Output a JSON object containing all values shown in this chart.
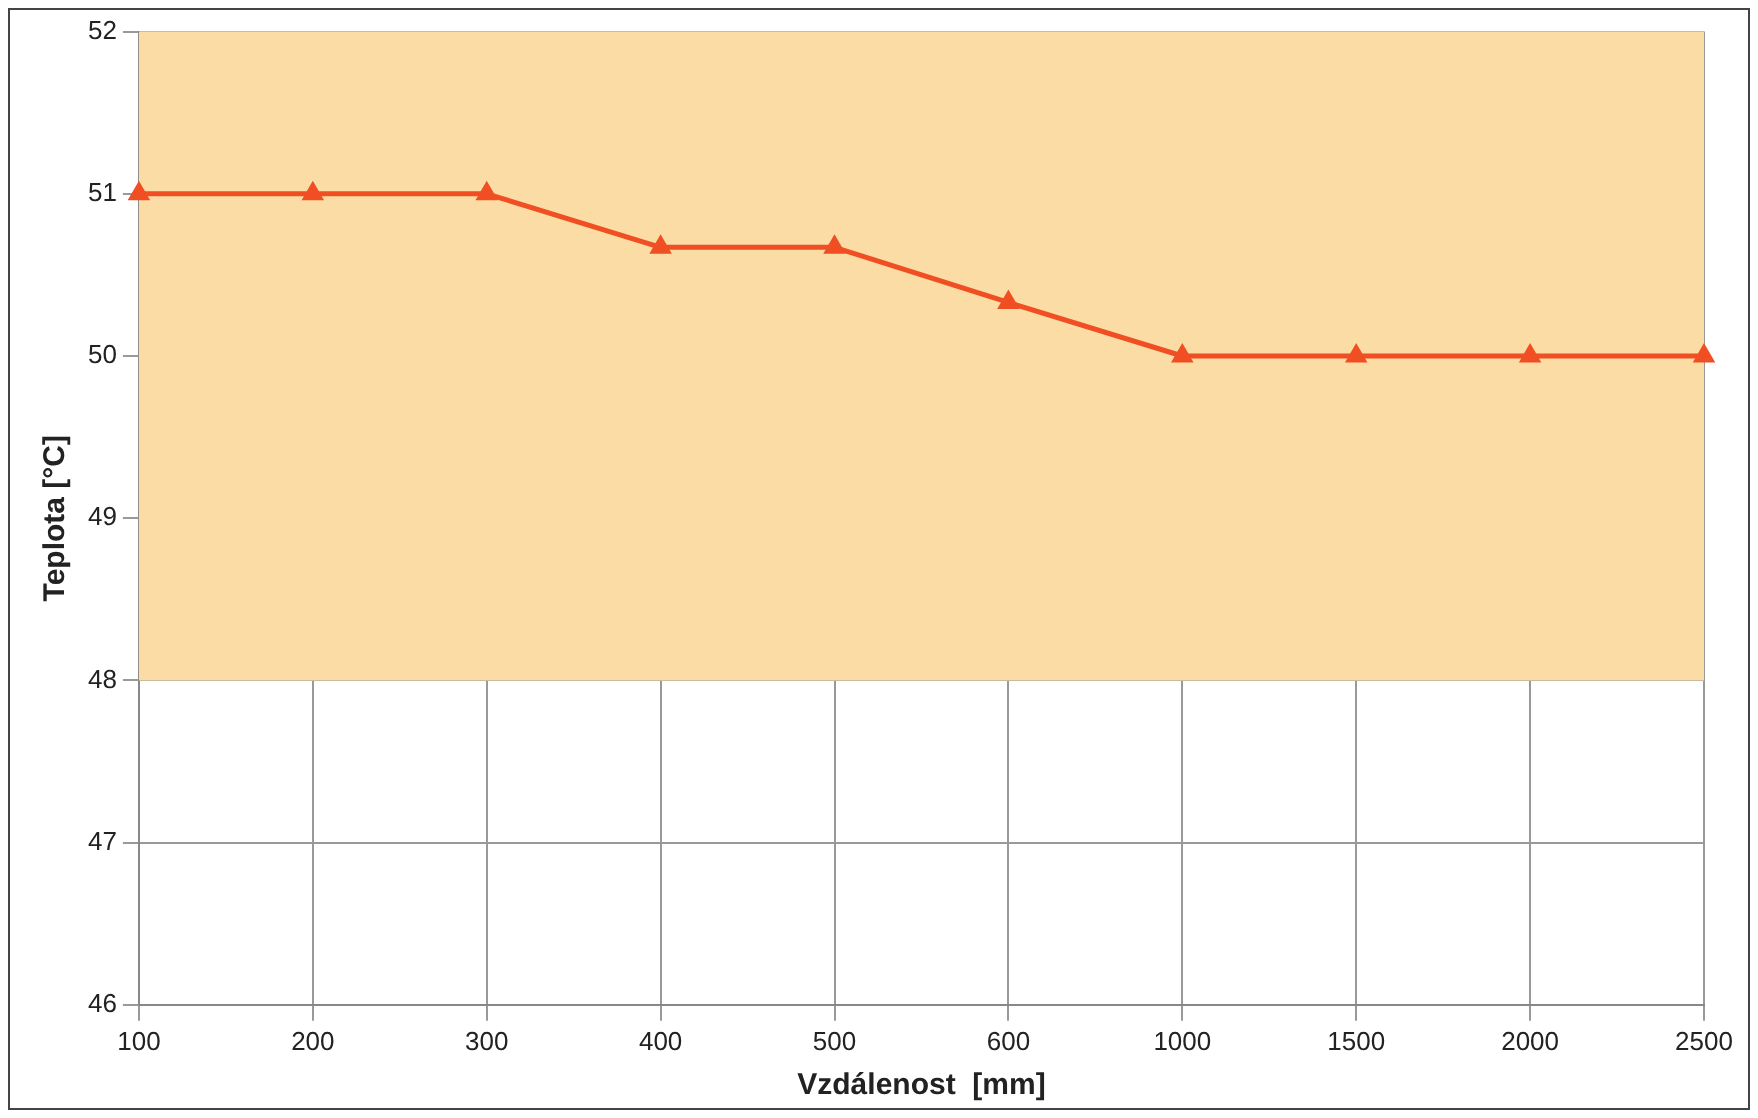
{
  "chart_data": {
    "type": "line",
    "xlabel": "Vzdálenost  [mm]",
    "ylabel": "Teplota [°C]",
    "categories": [
      "100",
      "200",
      "300",
      "400",
      "500",
      "600",
      "1000",
      "1500",
      "2000",
      "2500"
    ],
    "series": [
      {
        "color": "#f04e23",
        "values": [
          51,
          51,
          51,
          50.67,
          50.67,
          50.33,
          50,
          50,
          50,
          50
        ]
      }
    ],
    "ylim": [
      46,
      52
    ],
    "yticks": [
      46,
      47,
      48,
      49,
      50,
      51,
      52
    ],
    "grid": true,
    "legend": false,
    "marker": "triangle",
    "line_style": "solid",
    "bands": [
      {
        "axis": "y",
        "from": 48,
        "to": 52,
        "color": "#fbdca4"
      }
    ]
  }
}
